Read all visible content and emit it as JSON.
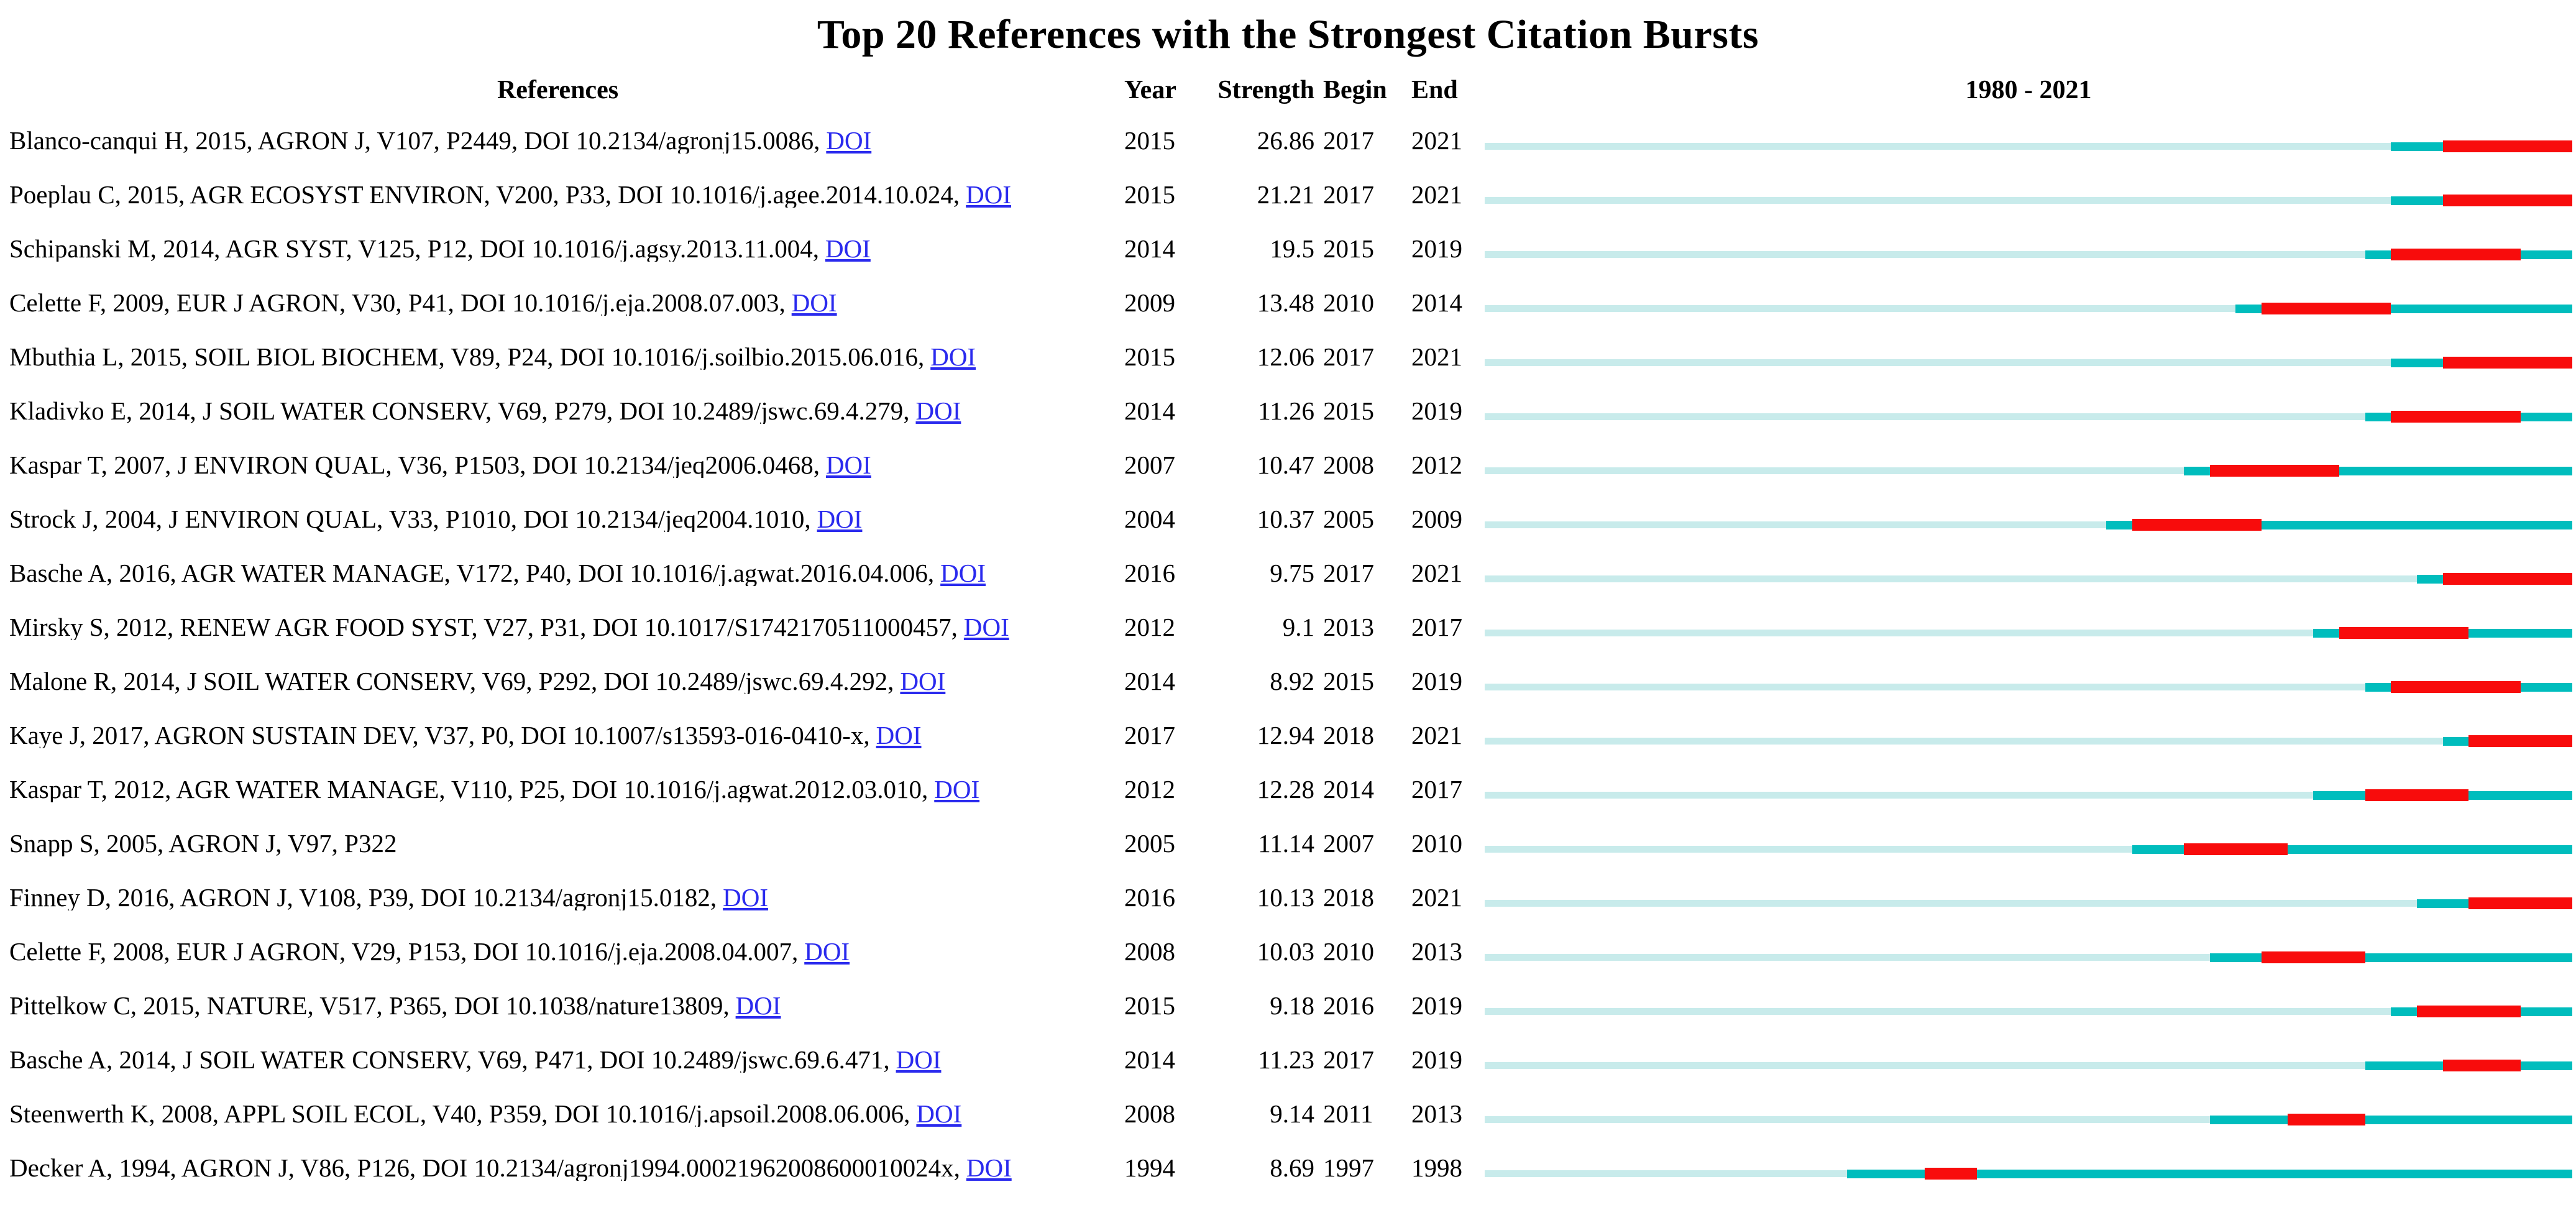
{
  "title": "Top 20 References with the Strongest Citation Bursts",
  "columns": {
    "references": "References",
    "year": "Year",
    "strength": "Strength",
    "begin": "Begin",
    "end": "End",
    "timeline": "1980 - 2021"
  },
  "doi_link_label": "DOI",
  "colors": {
    "baseline_bar": "#C8EBEB",
    "active_bar": "#00BDBD",
    "burst_bar": "#F80C0C",
    "link": "#2A2AEE",
    "text": "#000000"
  },
  "chart_data": {
    "type": "table",
    "title": "Top 20 References with the Strongest Citation Bursts",
    "timeline_label": "1980 - 2021",
    "timeline_start": 1980,
    "timeline_end": 2021,
    "bar_encoding": {
      "pale_segment": "timeline start to publication year",
      "teal_segment": "publication year until burst begin and after burst end",
      "red_segment": "burst period from begin to end year inclusive"
    },
    "rows": [
      {
        "reference": "Blanco-canqui H, 2015, AGRON J, V107, P2449, DOI 10.2134/agronj15.0086,",
        "has_doi": true,
        "year": 2015,
        "strength": "26.86",
        "begin": 2017,
        "end": 2021
      },
      {
        "reference": "Poeplau C, 2015, AGR ECOSYST ENVIRON, V200, P33, DOI 10.1016/j.agee.2014.10.024,",
        "has_doi": true,
        "year": 2015,
        "strength": "21.21",
        "begin": 2017,
        "end": 2021
      },
      {
        "reference": "Schipanski M, 2014, AGR SYST, V125, P12, DOI 10.1016/j.agsy.2013.11.004,",
        "has_doi": true,
        "year": 2014,
        "strength": "19.5",
        "begin": 2015,
        "end": 2019
      },
      {
        "reference": "Celette F, 2009, EUR J AGRON, V30, P41, DOI 10.1016/j.eja.2008.07.003,",
        "has_doi": true,
        "year": 2009,
        "strength": "13.48",
        "begin": 2010,
        "end": 2014
      },
      {
        "reference": "Mbuthia L, 2015, SOIL BIOL BIOCHEM, V89, P24, DOI 10.1016/j.soilbio.2015.06.016,",
        "has_doi": true,
        "year": 2015,
        "strength": "12.06",
        "begin": 2017,
        "end": 2021
      },
      {
        "reference": "Kladivko E, 2014, J SOIL WATER CONSERV, V69, P279, DOI 10.2489/jswc.69.4.279,",
        "has_doi": true,
        "year": 2014,
        "strength": "11.26",
        "begin": 2015,
        "end": 2019
      },
      {
        "reference": "Kaspar T, 2007, J ENVIRON QUAL, V36, P1503, DOI 10.2134/jeq2006.0468,",
        "has_doi": true,
        "year": 2007,
        "strength": "10.47",
        "begin": 2008,
        "end": 2012
      },
      {
        "reference": "Strock J, 2004, J ENVIRON QUAL, V33, P1010, DOI 10.2134/jeq2004.1010,",
        "has_doi": true,
        "year": 2004,
        "strength": "10.37",
        "begin": 2005,
        "end": 2009
      },
      {
        "reference": "Basche A, 2016, AGR WATER MANAGE, V172, P40, DOI 10.1016/j.agwat.2016.04.006,",
        "has_doi": true,
        "year": 2016,
        "strength": "9.75",
        "begin": 2017,
        "end": 2021
      },
      {
        "reference": "Mirsky S, 2012, RENEW AGR FOOD SYST, V27, P31, DOI 10.1017/S1742170511000457,",
        "has_doi": true,
        "year": 2012,
        "strength": "9.1",
        "begin": 2013,
        "end": 2017
      },
      {
        "reference": "Malone R, 2014, J SOIL WATER CONSERV, V69, P292, DOI 10.2489/jswc.69.4.292,",
        "has_doi": true,
        "year": 2014,
        "strength": "8.92",
        "begin": 2015,
        "end": 2019
      },
      {
        "reference": "Kaye J, 2017, AGRON SUSTAIN DEV, V37, P0, DOI 10.1007/s13593-016-0410-x,",
        "has_doi": true,
        "year": 2017,
        "strength": "12.94",
        "begin": 2018,
        "end": 2021
      },
      {
        "reference": "Kaspar T, 2012, AGR WATER MANAGE, V110, P25, DOI 10.1016/j.agwat.2012.03.010,",
        "has_doi": true,
        "year": 2012,
        "strength": "12.28",
        "begin": 2014,
        "end": 2017
      },
      {
        "reference": "Snapp S, 2005, AGRON J, V97, P322",
        "has_doi": false,
        "year": 2005,
        "strength": "11.14",
        "begin": 2007,
        "end": 2010
      },
      {
        "reference": "Finney D, 2016, AGRON J, V108, P39, DOI 10.2134/agronj15.0182,",
        "has_doi": true,
        "year": 2016,
        "strength": "10.13",
        "begin": 2018,
        "end": 2021
      },
      {
        "reference": "Celette F, 2008, EUR J AGRON, V29, P153, DOI 10.1016/j.eja.2008.04.007,",
        "has_doi": true,
        "year": 2008,
        "strength": "10.03",
        "begin": 2010,
        "end": 2013
      },
      {
        "reference": "Pittelkow C, 2015, NATURE, V517, P365, DOI 10.1038/nature13809,",
        "has_doi": true,
        "year": 2015,
        "strength": "9.18",
        "begin": 2016,
        "end": 2019
      },
      {
        "reference": "Basche A, 2014, J SOIL WATER CONSERV, V69, P471, DOI 10.2489/jswc.69.6.471,",
        "has_doi": true,
        "year": 2014,
        "strength": "11.23",
        "begin": 2017,
        "end": 2019
      },
      {
        "reference": "Steenwerth K, 2008, APPL SOIL ECOL, V40, P359, DOI 10.1016/j.apsoil.2008.06.006,",
        "has_doi": true,
        "year": 2008,
        "strength": "9.14",
        "begin": 2011,
        "end": 2013
      },
      {
        "reference": "Decker A, 1994, AGRON J, V86, P126, DOI 10.2134/agronj1994.00021962008600010024x,",
        "has_doi": true,
        "year": 1994,
        "strength": "8.69",
        "begin": 1997,
        "end": 1998
      }
    ]
  }
}
